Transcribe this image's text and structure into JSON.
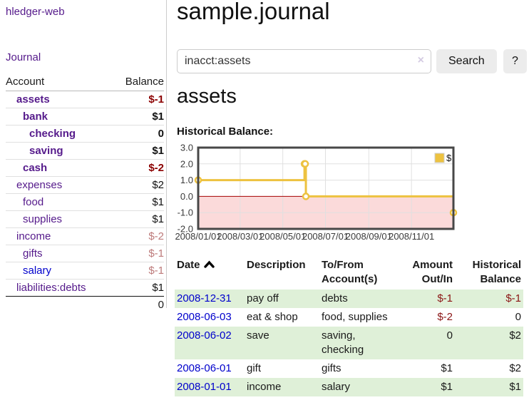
{
  "app": {
    "brand": "hledger-web",
    "nav_journal": "Journal"
  },
  "sidebar": {
    "accounts_header": {
      "account": "Account",
      "balance": "Balance"
    },
    "accounts": [
      {
        "name": "assets",
        "balance": "$-1",
        "depth": 1,
        "emph": true
      },
      {
        "name": "bank",
        "balance": "$1",
        "depth": 2,
        "emph": true
      },
      {
        "name": "checking",
        "balance": "0",
        "depth": 3,
        "emph": true
      },
      {
        "name": "saving",
        "balance": "$1",
        "depth": 3,
        "emph": true
      },
      {
        "name": "cash",
        "balance": "$-2",
        "depth": 2,
        "emph": true
      },
      {
        "name": "expenses",
        "balance": "$2",
        "depth": 1
      },
      {
        "name": "food",
        "balance": "$1",
        "depth": 2
      },
      {
        "name": "supplies",
        "balance": "$1",
        "depth": 2
      },
      {
        "name": "income",
        "balance": "$-2",
        "depth": 1
      },
      {
        "name": "gifts",
        "balance": "$-1",
        "depth": 2
      },
      {
        "name": "salary",
        "balance": "$-1",
        "depth": 2,
        "unvisited": true
      },
      {
        "name": "liabilities:debts",
        "balance": "$1",
        "depth": 1
      }
    ],
    "total": "0"
  },
  "header": {
    "title": "sample.journal"
  },
  "search": {
    "value": "inacct:assets",
    "clear_icon": "×",
    "button": "Search",
    "help": "?"
  },
  "account_page": {
    "heading": "assets",
    "chart_label": "Historical Balance:"
  },
  "chart_data": {
    "type": "line",
    "step": true,
    "title": "Historical Balance",
    "series": [
      {
        "name": "$",
        "color": "#edc240",
        "points": [
          {
            "x": "2008-01-01",
            "y": 1
          },
          {
            "x": "2008-06-01",
            "y": 2
          },
          {
            "x": "2008-06-02",
            "y": 2
          },
          {
            "x": "2008-06-03",
            "y": 0
          },
          {
            "x": "2008-12-31",
            "y": -1
          }
        ]
      }
    ],
    "x_range": [
      "2008-01-01",
      "2008-12-31"
    ],
    "x_ticks": [
      {
        "x": "2008-01-01",
        "label": "2008/01/01"
      },
      {
        "x": "2008-03-01",
        "label": "2008/03/01"
      },
      {
        "x": "2008-05-01",
        "label": "2008/05/01"
      },
      {
        "x": "2008-07-01",
        "label": "2008/07/01"
      },
      {
        "x": "2008-09-01",
        "label": "2008/09/01"
      },
      {
        "x": "2008-11-01",
        "label": "2008/11/01"
      }
    ],
    "y_ticks": [
      3.0,
      2.0,
      1.0,
      0.0,
      -1.0,
      -2.0
    ],
    "ylim": [
      -2,
      3
    ],
    "grid": true,
    "legend_position": "top-right",
    "colors": {
      "line": "#edc240",
      "marker_fill": "#ffffff",
      "negative_region": "#fbdada",
      "zero_line": "#a40000",
      "gridline": "#e0e0e0",
      "border": "#474747",
      "tick_text": "#3a3a3a"
    }
  },
  "register": {
    "columns": [
      {
        "label": "Date",
        "sorted": "asc"
      },
      {
        "label": "Description"
      },
      {
        "label": "To/From Account(s)"
      },
      {
        "label": "Amount Out/In",
        "align": "right"
      },
      {
        "label": "Historical Balance",
        "align": "right"
      }
    ],
    "rows": [
      {
        "date": "2008-12-31",
        "description": "pay off",
        "accounts": "debts",
        "amount": "$-1",
        "balance": "$-1"
      },
      {
        "date": "2008-06-03",
        "description": "eat & shop",
        "accounts": "food, supplies",
        "amount": "$-2",
        "balance": "0"
      },
      {
        "date": "2008-06-02",
        "description": "save",
        "accounts": "saving, checking",
        "amount": "0",
        "balance": "$2"
      },
      {
        "date": "2008-06-01",
        "description": "gift",
        "accounts": "gifts",
        "amount": "$1",
        "balance": "$2"
      },
      {
        "date": "2008-01-01",
        "description": "income",
        "accounts": "salary",
        "amount": "$1",
        "balance": "$1"
      }
    ]
  }
}
